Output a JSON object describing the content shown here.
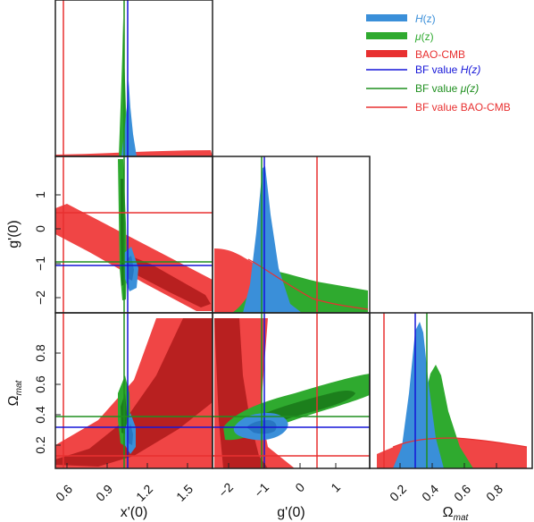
{
  "chart_data": {
    "type": "triangle-corner-plot",
    "parameters": [
      "x'(0)",
      "g'(0)",
      "Ω_mat"
    ],
    "axis_labels": {
      "x": [
        "x'(0)",
        "g'(0)",
        "Ω"
      ],
      "y": [
        "g'(0)",
        "Ω"
      ],
      "subscript": "mat"
    },
    "ranges": {
      "x0": [
        0.45,
        1.95
      ],
      "g0": [
        -2.45,
        1.9
      ],
      "om": [
        0.02,
        1.0
      ]
    },
    "ticks": {
      "x0": [
        "0.6",
        "0.9",
        "1.2",
        "1.5"
      ],
      "g0": [
        "−2",
        "−1",
        "0",
        "1"
      ],
      "om": [
        "0.2",
        "0.4",
        "0.6",
        "0.8"
      ]
    },
    "best_fit": {
      "H(z)": {
        "x0": 1.09,
        "g0": -1.1,
        "om": 0.28
      },
      "mu(z)": {
        "x0": 1.06,
        "g0": -1.05,
        "om": 0.34
      },
      "BAO-CMB": {
        "x0": 0.55,
        "g0": 0.4,
        "om": 0.1
      }
    },
    "legend": {
      "placement": "top-right",
      "entries": [
        {
          "label": "H",
          "suffix": "(z)",
          "italic": "H",
          "color": "#3a8fd9",
          "kind": "patch"
        },
        {
          "label": "μ",
          "suffix": "(z)",
          "italic": "μ",
          "color": "#2faa2f",
          "kind": "patch"
        },
        {
          "label": "BAO-CMB",
          "suffix": "",
          "color": "#e83030",
          "kind": "patch"
        },
        {
          "label": "BF value ",
          "suffix": "H(z)",
          "color": "#1515d8",
          "kind": "line"
        },
        {
          "label": "BF value ",
          "suffix": "μ(z)",
          "color": "#1f8f1f",
          "kind": "line"
        },
        {
          "label": "BF value ",
          "suffix": "BAO-CMB",
          "color": "#e83030",
          "kind": "line"
        }
      ]
    },
    "colors": {
      "H": "#3a8fd9",
      "mu": "#2faa2f",
      "mu_dark": "#1c7f1c",
      "bao": "#f04545",
      "bao_dark": "#b82020",
      "bf_H": "#1515d8",
      "bf_mu": "#1f8f1f",
      "bf_bao": "#e83030"
    }
  }
}
